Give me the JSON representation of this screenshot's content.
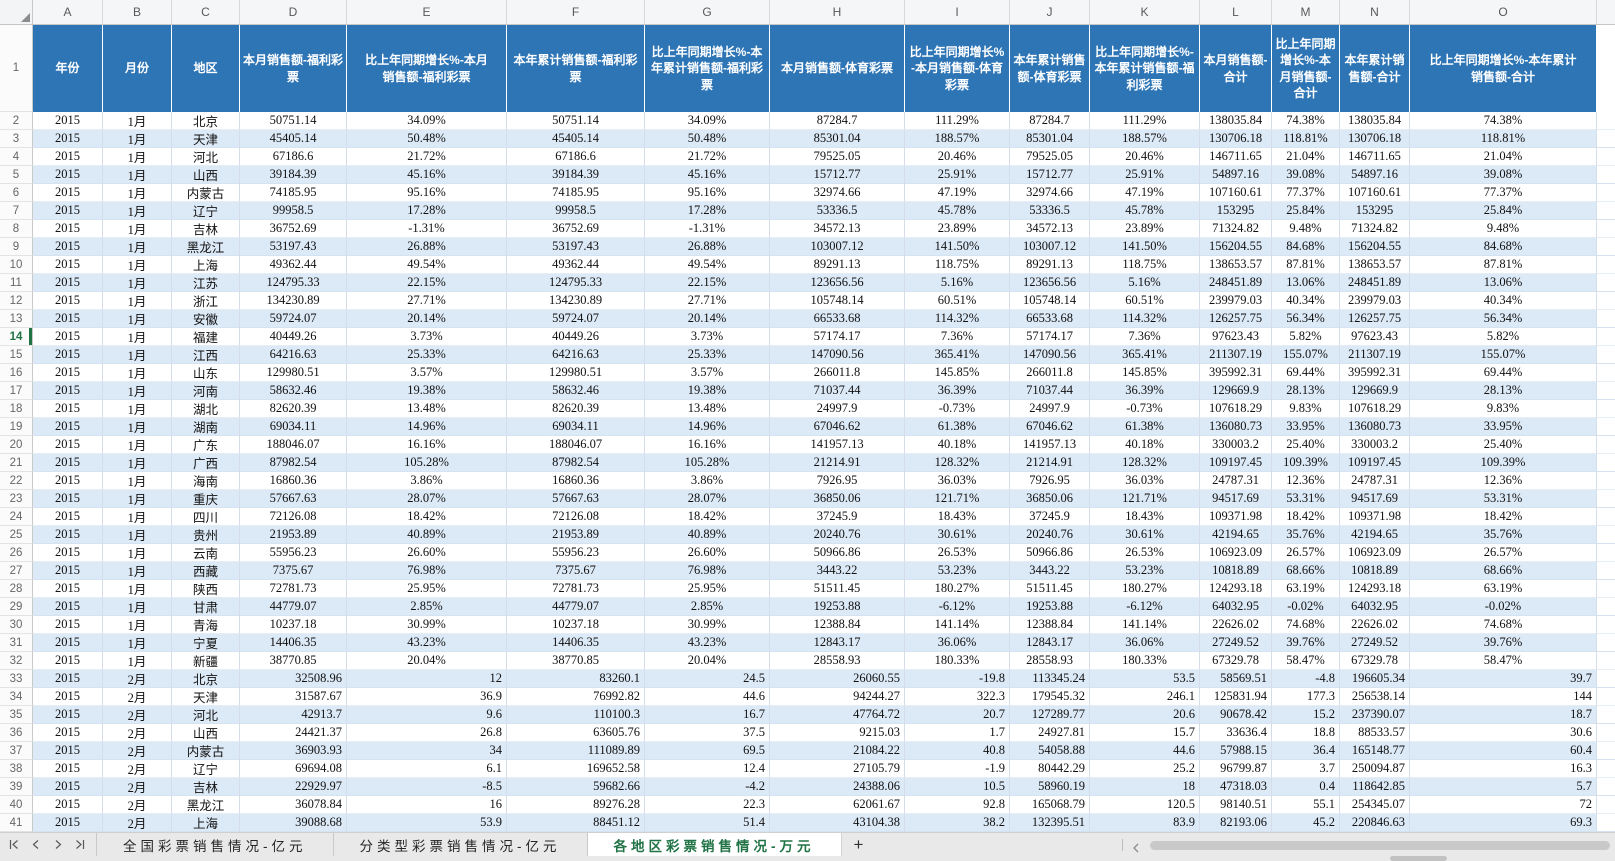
{
  "spreadsheet": {
    "row1_number": "1",
    "active_row": 14,
    "columns": [
      {
        "letter": "A",
        "header": "年份"
      },
      {
        "letter": "B",
        "header": "月份"
      },
      {
        "letter": "C",
        "header": "地区"
      },
      {
        "letter": "D",
        "header": "本月销售额-福利彩票"
      },
      {
        "letter": "E",
        "header": "比上年同期增长%-本月销售额-福利彩票"
      },
      {
        "letter": "F",
        "header": "本年累计销售额-福利彩票"
      },
      {
        "letter": "G",
        "header": "比上年同期增长%-本年累计销售额-福利彩票"
      },
      {
        "letter": "H",
        "header": "本月销售额-体育彩票"
      },
      {
        "letter": "I",
        "header": "比上年同期增长%-本月销售额-体育彩票"
      },
      {
        "letter": "J",
        "header": "本年累计销售额-体育彩票"
      },
      {
        "letter": "K",
        "header": "比上年同期增长%-本年累计销售额-福利彩票"
      },
      {
        "letter": "L",
        "header": "本月销售额-合计"
      },
      {
        "letter": "M",
        "header": "比上年同期增长%-本月销售额-合计"
      },
      {
        "letter": "N",
        "header": "本年累计销售额-合计"
      },
      {
        "letter": "O",
        "header": "比上年同期增长%-本年累计销售额-合计"
      }
    ],
    "rows": [
      {
        "n": 2,
        "a": "c",
        "c": [
          "2015",
          "1月",
          "北京",
          "50751.14",
          "34.09%",
          "50751.14",
          "34.09%",
          "87284.7",
          "111.29%",
          "87284.7",
          "111.29%",
          "138035.84",
          "74.38%",
          "138035.84",
          "74.38%"
        ]
      },
      {
        "n": 3,
        "a": "c",
        "c": [
          "2015",
          "1月",
          "天津",
          "45405.14",
          "50.48%",
          "45405.14",
          "50.48%",
          "85301.04",
          "188.57%",
          "85301.04",
          "188.57%",
          "130706.18",
          "118.81%",
          "130706.18",
          "118.81%"
        ]
      },
      {
        "n": 4,
        "a": "c",
        "c": [
          "2015",
          "1月",
          "河北",
          "67186.6",
          "21.72%",
          "67186.6",
          "21.72%",
          "79525.05",
          "20.46%",
          "79525.05",
          "20.46%",
          "146711.65",
          "21.04%",
          "146711.65",
          "21.04%"
        ]
      },
      {
        "n": 5,
        "a": "c",
        "c": [
          "2015",
          "1月",
          "山西",
          "39184.39",
          "45.16%",
          "39184.39",
          "45.16%",
          "15712.77",
          "25.91%",
          "15712.77",
          "25.91%",
          "54897.16",
          "39.08%",
          "54897.16",
          "39.08%"
        ]
      },
      {
        "n": 6,
        "a": "c",
        "c": [
          "2015",
          "1月",
          "内蒙古",
          "74185.95",
          "95.16%",
          "74185.95",
          "95.16%",
          "32974.66",
          "47.19%",
          "32974.66",
          "47.19%",
          "107160.61",
          "77.37%",
          "107160.61",
          "77.37%"
        ]
      },
      {
        "n": 7,
        "a": "c",
        "c": [
          "2015",
          "1月",
          "辽宁",
          "99958.5",
          "17.28%",
          "99958.5",
          "17.28%",
          "53336.5",
          "45.78%",
          "53336.5",
          "45.78%",
          "153295",
          "25.84%",
          "153295",
          "25.84%"
        ]
      },
      {
        "n": 8,
        "a": "c",
        "c": [
          "2015",
          "1月",
          "吉林",
          "36752.69",
          "-1.31%",
          "36752.69",
          "-1.31%",
          "34572.13",
          "23.89%",
          "34572.13",
          "23.89%",
          "71324.82",
          "9.48%",
          "71324.82",
          "9.48%"
        ]
      },
      {
        "n": 9,
        "a": "c",
        "c": [
          "2015",
          "1月",
          "黑龙江",
          "53197.43",
          "26.88%",
          "53197.43",
          "26.88%",
          "103007.12",
          "141.50%",
          "103007.12",
          "141.50%",
          "156204.55",
          "84.68%",
          "156204.55",
          "84.68%"
        ]
      },
      {
        "n": 10,
        "a": "c",
        "c": [
          "2015",
          "1月",
          "上海",
          "49362.44",
          "49.54%",
          "49362.44",
          "49.54%",
          "89291.13",
          "118.75%",
          "89291.13",
          "118.75%",
          "138653.57",
          "87.81%",
          "138653.57",
          "87.81%"
        ]
      },
      {
        "n": 11,
        "a": "c",
        "c": [
          "2015",
          "1月",
          "江苏",
          "124795.33",
          "22.15%",
          "124795.33",
          "22.15%",
          "123656.56",
          "5.16%",
          "123656.56",
          "5.16%",
          "248451.89",
          "13.06%",
          "248451.89",
          "13.06%"
        ]
      },
      {
        "n": 12,
        "a": "c",
        "c": [
          "2015",
          "1月",
          "浙江",
          "134230.89",
          "27.71%",
          "134230.89",
          "27.71%",
          "105748.14",
          "60.51%",
          "105748.14",
          "60.51%",
          "239979.03",
          "40.34%",
          "239979.03",
          "40.34%"
        ]
      },
      {
        "n": 13,
        "a": "c",
        "c": [
          "2015",
          "1月",
          "安徽",
          "59724.07",
          "20.14%",
          "59724.07",
          "20.14%",
          "66533.68",
          "114.32%",
          "66533.68",
          "114.32%",
          "126257.75",
          "56.34%",
          "126257.75",
          "56.34%"
        ]
      },
      {
        "n": 14,
        "a": "c",
        "c": [
          "2015",
          "1月",
          "福建",
          "40449.26",
          "3.73%",
          "40449.26",
          "3.73%",
          "57174.17",
          "7.36%",
          "57174.17",
          "7.36%",
          "97623.43",
          "5.82%",
          "97623.43",
          "5.82%"
        ]
      },
      {
        "n": 15,
        "a": "c",
        "c": [
          "2015",
          "1月",
          "江西",
          "64216.63",
          "25.33%",
          "64216.63",
          "25.33%",
          "147090.56",
          "365.41%",
          "147090.56",
          "365.41%",
          "211307.19",
          "155.07%",
          "211307.19",
          "155.07%"
        ]
      },
      {
        "n": 16,
        "a": "c",
        "c": [
          "2015",
          "1月",
          "山东",
          "129980.51",
          "3.57%",
          "129980.51",
          "3.57%",
          "266011.8",
          "145.85%",
          "266011.8",
          "145.85%",
          "395992.31",
          "69.44%",
          "395992.31",
          "69.44%"
        ]
      },
      {
        "n": 17,
        "a": "c",
        "c": [
          "2015",
          "1月",
          "河南",
          "58632.46",
          "19.38%",
          "58632.46",
          "19.38%",
          "71037.44",
          "36.39%",
          "71037.44",
          "36.39%",
          "129669.9",
          "28.13%",
          "129669.9",
          "28.13%"
        ]
      },
      {
        "n": 18,
        "a": "c",
        "c": [
          "2015",
          "1月",
          "湖北",
          "82620.39",
          "13.48%",
          "82620.39",
          "13.48%",
          "24997.9",
          "-0.73%",
          "24997.9",
          "-0.73%",
          "107618.29",
          "9.83%",
          "107618.29",
          "9.83%"
        ]
      },
      {
        "n": 19,
        "a": "c",
        "c": [
          "2015",
          "1月",
          "湖南",
          "69034.11",
          "14.96%",
          "69034.11",
          "14.96%",
          "67046.62",
          "61.38%",
          "67046.62",
          "61.38%",
          "136080.73",
          "33.95%",
          "136080.73",
          "33.95%"
        ]
      },
      {
        "n": 20,
        "a": "c",
        "c": [
          "2015",
          "1月",
          "广东",
          "188046.07",
          "16.16%",
          "188046.07",
          "16.16%",
          "141957.13",
          "40.18%",
          "141957.13",
          "40.18%",
          "330003.2",
          "25.40%",
          "330003.2",
          "25.40%"
        ]
      },
      {
        "n": 21,
        "a": "c",
        "c": [
          "2015",
          "1月",
          "广西",
          "87982.54",
          "105.28%",
          "87982.54",
          "105.28%",
          "21214.91",
          "128.32%",
          "21214.91",
          "128.32%",
          "109197.45",
          "109.39%",
          "109197.45",
          "109.39%"
        ]
      },
      {
        "n": 22,
        "a": "c",
        "c": [
          "2015",
          "1月",
          "海南",
          "16860.36",
          "3.86%",
          "16860.36",
          "3.86%",
          "7926.95",
          "36.03%",
          "7926.95",
          "36.03%",
          "24787.31",
          "12.36%",
          "24787.31",
          "12.36%"
        ]
      },
      {
        "n": 23,
        "a": "c",
        "c": [
          "2015",
          "1月",
          "重庆",
          "57667.63",
          "28.07%",
          "57667.63",
          "28.07%",
          "36850.06",
          "121.71%",
          "36850.06",
          "121.71%",
          "94517.69",
          "53.31%",
          "94517.69",
          "53.31%"
        ]
      },
      {
        "n": 24,
        "a": "c",
        "c": [
          "2015",
          "1月",
          "四川",
          "72126.08",
          "18.42%",
          "72126.08",
          "18.42%",
          "37245.9",
          "18.43%",
          "37245.9",
          "18.43%",
          "109371.98",
          "18.42%",
          "109371.98",
          "18.42%"
        ]
      },
      {
        "n": 25,
        "a": "c",
        "c": [
          "2015",
          "1月",
          "贵州",
          "21953.89",
          "40.89%",
          "21953.89",
          "40.89%",
          "20240.76",
          "30.61%",
          "20240.76",
          "30.61%",
          "42194.65",
          "35.76%",
          "42194.65",
          "35.76%"
        ]
      },
      {
        "n": 26,
        "a": "c",
        "c": [
          "2015",
          "1月",
          "云南",
          "55956.23",
          "26.60%",
          "55956.23",
          "26.60%",
          "50966.86",
          "26.53%",
          "50966.86",
          "26.53%",
          "106923.09",
          "26.57%",
          "106923.09",
          "26.57%"
        ]
      },
      {
        "n": 27,
        "a": "c",
        "c": [
          "2015",
          "1月",
          "西藏",
          "7375.67",
          "76.98%",
          "7375.67",
          "76.98%",
          "3443.22",
          "53.23%",
          "3443.22",
          "53.23%",
          "10818.89",
          "68.66%",
          "10818.89",
          "68.66%"
        ]
      },
      {
        "n": 28,
        "a": "c",
        "c": [
          "2015",
          "1月",
          "陕西",
          "72781.73",
          "25.95%",
          "72781.73",
          "25.95%",
          "51511.45",
          "180.27%",
          "51511.45",
          "180.27%",
          "124293.18",
          "63.19%",
          "124293.18",
          "63.19%"
        ]
      },
      {
        "n": 29,
        "a": "c",
        "c": [
          "2015",
          "1月",
          "甘肃",
          "44779.07",
          "2.85%",
          "44779.07",
          "2.85%",
          "19253.88",
          "-6.12%",
          "19253.88",
          "-6.12%",
          "64032.95",
          "-0.02%",
          "64032.95",
          "-0.02%"
        ]
      },
      {
        "n": 30,
        "a": "c",
        "c": [
          "2015",
          "1月",
          "青海",
          "10237.18",
          "30.99%",
          "10237.18",
          "30.99%",
          "12388.84",
          "141.14%",
          "12388.84",
          "141.14%",
          "22626.02",
          "74.68%",
          "22626.02",
          "74.68%"
        ]
      },
      {
        "n": 31,
        "a": "c",
        "c": [
          "2015",
          "1月",
          "宁夏",
          "14406.35",
          "43.23%",
          "14406.35",
          "43.23%",
          "12843.17",
          "36.06%",
          "12843.17",
          "36.06%",
          "27249.52",
          "39.76%",
          "27249.52",
          "39.76%"
        ]
      },
      {
        "n": 32,
        "a": "c",
        "c": [
          "2015",
          "1月",
          "新疆",
          "38770.85",
          "20.04%",
          "38770.85",
          "20.04%",
          "28558.93",
          "180.33%",
          "28558.93",
          "180.33%",
          "67329.78",
          "58.47%",
          "67329.78",
          "58.47%"
        ]
      },
      {
        "n": 33,
        "a": "r",
        "c": [
          "2015",
          "2月",
          "北京",
          "32508.96",
          "12",
          "83260.1",
          "24.5",
          "26060.55",
          "-19.8",
          "113345.24",
          "53.5",
          "58569.51",
          "-4.8",
          "196605.34",
          "39.7"
        ]
      },
      {
        "n": 34,
        "a": "r",
        "c": [
          "2015",
          "2月",
          "天津",
          "31587.67",
          "36.9",
          "76992.82",
          "44.6",
          "94244.27",
          "322.3",
          "179545.32",
          "246.1",
          "125831.94",
          "177.3",
          "256538.14",
          "144"
        ]
      },
      {
        "n": 35,
        "a": "r",
        "c": [
          "2015",
          "2月",
          "河北",
          "42913.7",
          "9.6",
          "110100.3",
          "16.7",
          "47764.72",
          "20.7",
          "127289.77",
          "20.6",
          "90678.42",
          "15.2",
          "237390.07",
          "18.7"
        ]
      },
      {
        "n": 36,
        "a": "r",
        "c": [
          "2015",
          "2月",
          "山西",
          "24421.37",
          "26.8",
          "63605.76",
          "37.5",
          "9215.03",
          "1.7",
          "24927.81",
          "15.7",
          "33636.4",
          "18.8",
          "88533.57",
          "30.6"
        ]
      },
      {
        "n": 37,
        "a": "r",
        "c": [
          "2015",
          "2月",
          "内蒙古",
          "36903.93",
          "34",
          "111089.89",
          "69.5",
          "21084.22",
          "40.8",
          "54058.88",
          "44.6",
          "57988.15",
          "36.4",
          "165148.77",
          "60.4"
        ]
      },
      {
        "n": 38,
        "a": "r",
        "c": [
          "2015",
          "2月",
          "辽宁",
          "69694.08",
          "6.1",
          "169652.58",
          "12.4",
          "27105.79",
          "-1.9",
          "80442.29",
          "25.2",
          "96799.87",
          "3.7",
          "250094.87",
          "16.3"
        ]
      },
      {
        "n": 39,
        "a": "r",
        "c": [
          "2015",
          "2月",
          "吉林",
          "22929.97",
          "-8.5",
          "59682.66",
          "-4.2",
          "24388.06",
          "10.5",
          "58960.19",
          "18",
          "47318.03",
          "0.4",
          "118642.85",
          "5.7"
        ]
      },
      {
        "n": 40,
        "a": "r",
        "c": [
          "2015",
          "2月",
          "黑龙江",
          "36078.84",
          "16",
          "89276.28",
          "22.3",
          "62061.67",
          "92.8",
          "165068.79",
          "120.5",
          "98140.51",
          "55.1",
          "254345.07",
          "72"
        ]
      },
      {
        "n": 41,
        "a": "r",
        "c": [
          "2015",
          "2月",
          "上海",
          "39088.68",
          "53.9",
          "88451.12",
          "51.4",
          "43104.38",
          "38.2",
          "132395.51",
          "83.9",
          "82193.06",
          "45.2",
          "220846.63",
          "69.3"
        ]
      }
    ]
  },
  "tab_bar": {
    "tabs": [
      {
        "label": "全国彩票销售情况-亿元",
        "active": false
      },
      {
        "label": "分类型彩票销售情况-亿元",
        "active": false
      },
      {
        "label": "各地区彩票销售情况-万元",
        "active": true
      }
    ],
    "add_label": "+"
  },
  "colors": {
    "header_bg": "#2E75B6",
    "band_blue": "#DCE9F6",
    "active_green": "#217346"
  }
}
